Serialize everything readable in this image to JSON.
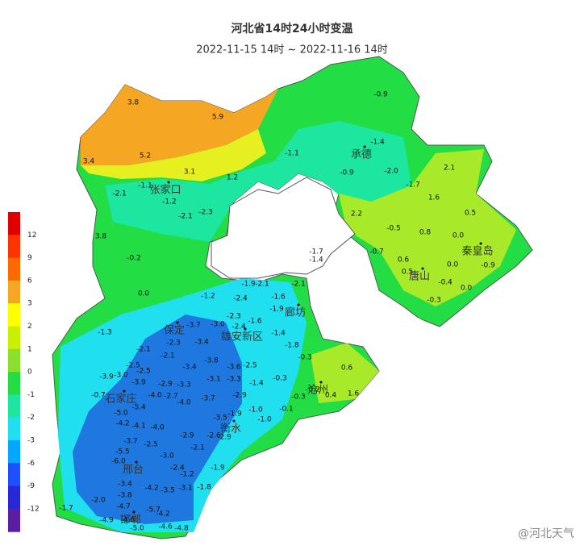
{
  "header": {
    "title": "河北省14时24小时变温",
    "subtitle": "2022-11-15 14时 ~ 2022-11-16 14时"
  },
  "legend": {
    "ticks": [
      "12",
      "9",
      "6",
      "3",
      "2",
      "1",
      "0",
      "-1",
      "-2",
      "-3",
      "-6",
      "-9",
      "-12"
    ]
  },
  "cities": [
    "承德",
    "张家口",
    "秦皇岛",
    "唐山",
    "廊坊",
    "雄安新区",
    "保定",
    "沧州",
    "衡水",
    "石家庄",
    "邢台",
    "邯郸"
  ],
  "stations": [
    "3.8",
    "5.9",
    "5.2",
    "3.4",
    "3.1",
    "1.2",
    "-2.1",
    "-1.1",
    "-1.2",
    "-2.1",
    "-2.3",
    "3.8",
    "-0.2",
    "0.0",
    "-1.3",
    "-1.2",
    "-2.4",
    "-1.9",
    "-2.1",
    "-1.6",
    "-2.1",
    "-1.9",
    "-1.4",
    "-1.8",
    "-2.3",
    "-3.0",
    "-3.7",
    "-2.4",
    "-1.6",
    "-2.3",
    "-2.1",
    "-2.1",
    "-3.4",
    "-3.4",
    "-3.8",
    "-3.6",
    "-2.5",
    "-3.1",
    "-3.3",
    "-2.9",
    "-1.4",
    "-2.5",
    "-2.5",
    "-3.9",
    "-3.0",
    "-3.9",
    "-3.3",
    "-2.9",
    "-0.7",
    "-4.0",
    "-2.7",
    "-3.7",
    "-4.0",
    "-5.4",
    "-5.0",
    "-4.2",
    "-4.1",
    "-4.0",
    "-3.5",
    "-1.9",
    "-1.0",
    "-1.0",
    "-0.1",
    "-2.6",
    "-2.9",
    "-2.9",
    "-2.1",
    "-3.7",
    "-2.5",
    "-5.5",
    "-6.0",
    "-3.0",
    "-2.4",
    "-1.2",
    "-1.9",
    "-1.8",
    "-3.1",
    "-3.5",
    "-4.2",
    "-3.4",
    "-3.8",
    "-2.0",
    "-4.7",
    "-5.7",
    "-4.2",
    "-4.9",
    "-4.0",
    "-5.0",
    "-4.6",
    "-4.8",
    "-1.7",
    "-0.9",
    "-1.1",
    "-1.4",
    "-0.9",
    "-2.0",
    "-1.7",
    "2.1",
    "1.6",
    "2.2",
    "0.5",
    "-0.5",
    "0.8",
    "0.0",
    "-0.7",
    "0.6",
    "0.0",
    "-0.9",
    "0.5",
    "-0.4",
    "0.0",
    "-0.3",
    "-1.7",
    "-1.4",
    "0.6",
    "1.6",
    "0.4",
    "-0.2",
    "-0.3",
    "-0.3",
    "-0.3"
  ],
  "watermark": "@河北天气"
}
